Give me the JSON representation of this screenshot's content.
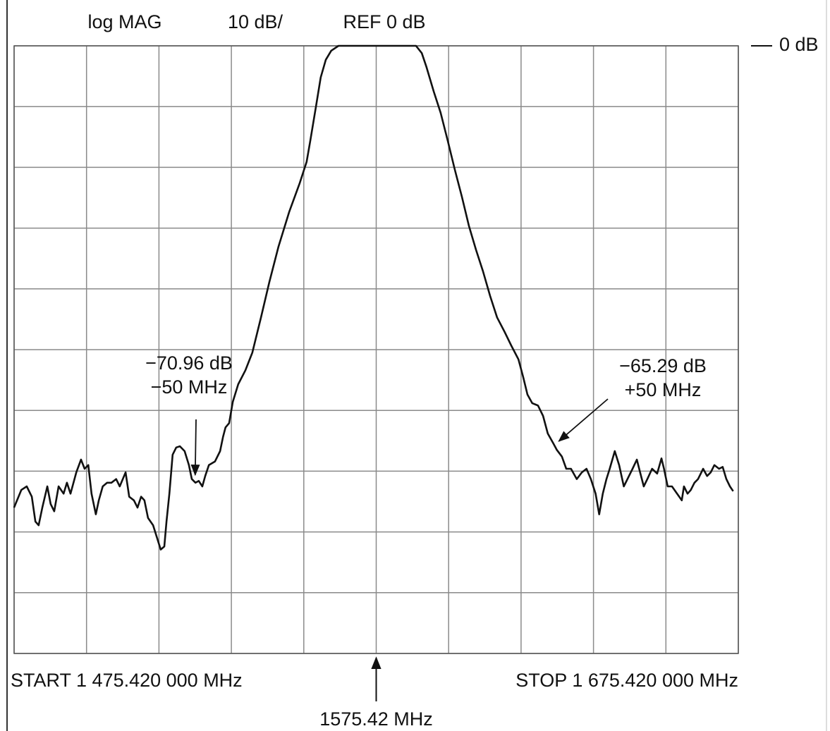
{
  "chart_data": {
    "type": "line",
    "header": [
      "log MAG",
      "10 dB/",
      "REF 0 dB"
    ],
    "reference": {
      "value": 0,
      "label": "0 dB"
    },
    "start_label": "START  1 475.420 000 MHz",
    "stop_label": "STOP  1 675.420 000 MHz",
    "center": {
      "value": 1575.42,
      "label": "1575.42 MHz"
    },
    "xlim": [
      1475.42,
      1675.42
    ],
    "ylim": [
      -100,
      0
    ],
    "xticks": [
      1475.42,
      1495.42,
      1515.42,
      1535.42,
      1555.42,
      1575.42,
      1595.42,
      1615.42,
      1635.42,
      1655.42,
      1675.42
    ],
    "yticks": [
      0,
      -10,
      -20,
      -30,
      -40,
      -50,
      -60,
      -70,
      -80,
      -90,
      -100
    ],
    "grid": true,
    "color": "#111111",
    "x": [
      1475.4,
      1477.4,
      1478.9,
      1480.3,
      1481.3,
      1482.2,
      1483.2,
      1484.6,
      1485.5,
      1486.5,
      1487.7,
      1489.1,
      1490.0,
      1491.0,
      1492.6,
      1493.9,
      1494.9,
      1495.9,
      1496.8,
      1498.0,
      1498.8,
      1499.9,
      1501.1,
      1502.3,
      1503.6,
      1504.6,
      1506.2,
      1507.2,
      1508.5,
      1509.5,
      1510.5,
      1511.4,
      1512.4,
      1513.8,
      1514.7,
      1515.9,
      1516.9,
      1517.5,
      1518.3,
      1519.2,
      1520.2,
      1521.2,
      1522.5,
      1523.7,
      1524.5,
      1525.5,
      1526.4,
      1527.4,
      1528.2,
      1529.2,
      1530.9,
      1532.3,
      1533.1,
      1533.8,
      1534.8,
      1535.8,
      1537.3,
      1539.3,
      1541.2,
      1543.6,
      1545.9,
      1548.4,
      1551.4,
      1554.3,
      1556.2,
      1557.2,
      1558.8,
      1560.1,
      1561.5,
      1563.0,
      1565.0,
      1568.9,
      1576.7,
      1586.4,
      1588.0,
      1589.3,
      1591.3,
      1593.2,
      1595.2,
      1597.1,
      1599.1,
      1601.0,
      1603.0,
      1604.9,
      1606.9,
      1608.8,
      1610.8,
      1612.7,
      1614.7,
      1616.0,
      1617.2,
      1618.5,
      1620.1,
      1621.5,
      1622.8,
      1624.4,
      1625.3,
      1626.7,
      1627.9,
      1629.2,
      1630.8,
      1632.2,
      1633.5,
      1634.7,
      1636.0,
      1637.0,
      1638.0,
      1639.0,
      1639.9,
      1641.3,
      1642.5,
      1643.8,
      1644.8,
      1646.2,
      1647.4,
      1648.3,
      1649.3,
      1650.3,
      1651.6,
      1653.0,
      1654.2,
      1654.9,
      1655.9,
      1657.1,
      1658.5,
      1659.8,
      1660.4,
      1661.4,
      1662.3,
      1663.3,
      1664.3,
      1665.7,
      1666.8,
      1667.8,
      1668.8,
      1670.1,
      1671.1,
      1672.1,
      1673.1,
      1674.0
    ],
    "values": [
      -76.0,
      -73.1,
      -72.5,
      -74.2,
      -78.3,
      -78.9,
      -76.0,
      -72.5,
      -75.4,
      -76.6,
      -72.5,
      -73.7,
      -71.9,
      -73.7,
      -70.2,
      -68.1,
      -69.6,
      -69.0,
      -73.7,
      -77.1,
      -74.8,
      -72.5,
      -71.9,
      -71.9,
      -71.3,
      -72.5,
      -70.2,
      -74.2,
      -74.8,
      -76.0,
      -74.2,
      -74.8,
      -77.7,
      -78.9,
      -80.6,
      -82.9,
      -82.4,
      -78.3,
      -73.7,
      -67.3,
      -66.1,
      -65.9,
      -66.7,
      -69.0,
      -71.3,
      -71.9,
      -71.6,
      -72.5,
      -70.8,
      -69.0,
      -68.4,
      -66.7,
      -64.4,
      -62.8,
      -62.1,
      -58.6,
      -55.7,
      -53.4,
      -50.5,
      -44.7,
      -38.9,
      -33.1,
      -27.3,
      -22.6,
      -19.1,
      -15.7,
      -9.9,
      -5.2,
      -2.3,
      -0.8,
      0,
      0,
      0,
      0,
      -1.2,
      -3.5,
      -7.5,
      -11.0,
      -15.7,
      -20.3,
      -24.9,
      -29.6,
      -33.6,
      -37.1,
      -41.2,
      -44.7,
      -47.0,
      -49.3,
      -51.6,
      -54.5,
      -57.4,
      -58.8,
      -59.2,
      -60.9,
      -63.8,
      -65.5,
      -66.5,
      -67.6,
      -69.6,
      -69.6,
      -71.3,
      -70.2,
      -69.6,
      -71.3,
      -73.7,
      -77.1,
      -73.7,
      -71.3,
      -69.6,
      -66.7,
      -69.0,
      -72.5,
      -71.3,
      -69.6,
      -68.1,
      -70.2,
      -72.5,
      -71.3,
      -69.6,
      -70.4,
      -67.9,
      -69.6,
      -72.5,
      -72.5,
      -73.7,
      -74.8,
      -72.5,
      -73.7,
      -73.1,
      -71.9,
      -71.3,
      -69.6,
      -70.8,
      -70.2,
      -69.0,
      -69.6,
      -69.3,
      -71.3,
      -72.5,
      -73.3
    ],
    "annotations": [
      {
        "lines": [
          "−70.96 dB",
          "−50 MHz"
        ],
        "x": 1525.42,
        "y": -70.96
      },
      {
        "lines": [
          "−65.29 dB",
          "+50 MHz"
        ],
        "x": 1625.42,
        "y": -65.29
      }
    ]
  }
}
